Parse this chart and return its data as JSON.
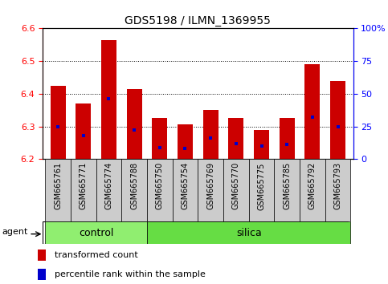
{
  "title": "GDS5198 / ILMN_1369955",
  "samples": [
    "GSM665761",
    "GSM665771",
    "GSM665774",
    "GSM665788",
    "GSM665750",
    "GSM665754",
    "GSM665769",
    "GSM665770",
    "GSM665775",
    "GSM665785",
    "GSM665792",
    "GSM665793"
  ],
  "groups": [
    "control",
    "control",
    "control",
    "control",
    "silica",
    "silica",
    "silica",
    "silica",
    "silica",
    "silica",
    "silica",
    "silica"
  ],
  "transformed_count": [
    6.425,
    6.37,
    6.565,
    6.415,
    6.325,
    6.305,
    6.35,
    6.325,
    6.29,
    6.325,
    6.49,
    6.44
  ],
  "percentile_rank": [
    25.0,
    18.0,
    46.0,
    22.0,
    9.0,
    8.0,
    16.0,
    12.0,
    10.0,
    11.0,
    32.0,
    25.0
  ],
  "y_min": 6.2,
  "y_max": 6.6,
  "bar_color": "#cc0000",
  "percentile_color": "#0000cc",
  "control_color": "#90EE70",
  "silica_color": "#66DD44",
  "xticklabel_bg": "#cccccc",
  "bar_width": 0.6
}
